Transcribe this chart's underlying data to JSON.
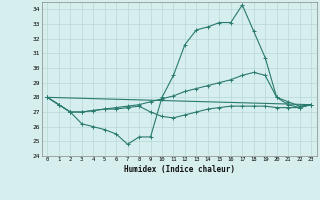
{
  "xlabel": "Humidex (Indice chaleur)",
  "x": [
    0,
    1,
    2,
    3,
    4,
    5,
    6,
    7,
    8,
    9,
    10,
    11,
    12,
    13,
    14,
    15,
    16,
    17,
    18,
    19,
    20,
    21,
    22,
    23
  ],
  "line1": [
    28,
    27.5,
    27.0,
    26.2,
    26.0,
    25.8,
    25.5,
    24.8,
    25.3,
    25.3,
    28.0,
    29.5,
    31.6,
    32.6,
    32.8,
    33.1,
    33.1,
    34.3,
    32.5,
    30.7,
    28.0,
    27.5,
    27.3,
    27.5
  ],
  "line2": [
    28.0,
    27.5,
    27.0,
    27.0,
    27.1,
    27.2,
    27.2,
    27.3,
    27.4,
    27.0,
    26.7,
    26.6,
    26.8,
    27.0,
    27.2,
    27.3,
    27.4,
    27.4,
    27.4,
    27.4,
    27.3,
    27.3,
    27.3,
    27.5
  ],
  "line3": [
    28.0,
    27.5,
    27.0,
    27.0,
    27.1,
    27.2,
    27.3,
    27.4,
    27.5,
    27.7,
    27.9,
    28.1,
    28.4,
    28.6,
    28.8,
    29.0,
    29.2,
    29.5,
    29.7,
    29.5,
    28.0,
    27.7,
    27.4,
    27.5
  ],
  "ylim": [
    24,
    34.5
  ],
  "ytick_min": 24,
  "ytick_max": 34,
  "line_color": "#2a7a6e",
  "bg_color": "#d6eeee",
  "grid_color": "#b8d8d8"
}
